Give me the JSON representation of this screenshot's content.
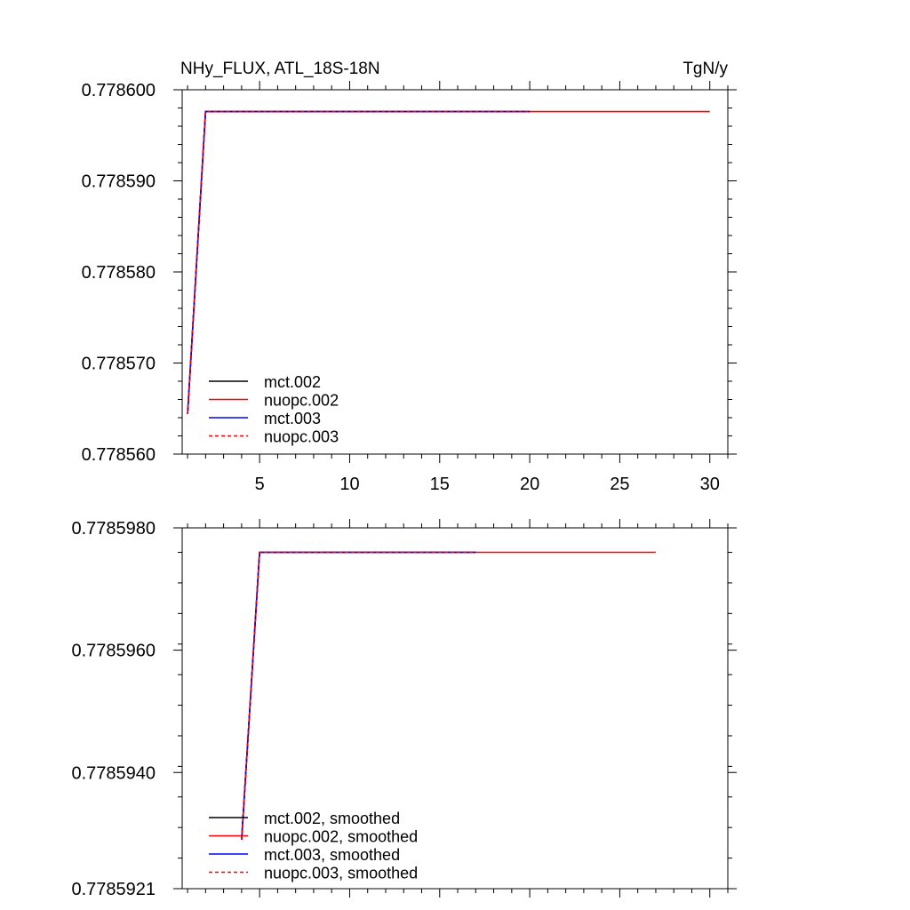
{
  "chart_data": [
    {
      "type": "line",
      "title_left": "NHy_FLUX, ATL_18S-18N",
      "title_right": "TgN/y",
      "xlim": [
        0.7,
        31
      ],
      "ylim": [
        0.77856,
        0.7786
      ],
      "x_ticks": [
        5,
        10,
        15,
        20,
        25,
        30
      ],
      "x_tick_labels": [
        "5",
        "10",
        "15",
        "20",
        "25",
        "30"
      ],
      "x_minor_step": 1,
      "y_ticks": [
        0.77856,
        0.77857,
        0.77858,
        0.77859,
        0.7786
      ],
      "y_tick_labels": [
        "0.778560",
        "0.778570",
        "0.778580",
        "0.778590",
        "0.778600"
      ],
      "y_minor_step": 2e-06,
      "legend_position": "bottom-left",
      "series": [
        {
          "name": "mct.002",
          "color": "#000000",
          "dash": "solid",
          "x": [
            1,
            2,
            20
          ],
          "y": [
            0.7785644,
            0.7785976,
            0.7785976
          ]
        },
        {
          "name": "nuopc.002",
          "color": "#ff0000",
          "dash": "solid",
          "x": [
            1,
            2,
            30
          ],
          "y": [
            0.7785644,
            0.7785976,
            0.7785976
          ]
        },
        {
          "name": "mct.003",
          "color": "#0000ff",
          "dash": "solid",
          "x": [
            1,
            2,
            20
          ],
          "y": [
            0.7785644,
            0.7785976,
            0.7785976
          ]
        },
        {
          "name": "nuopc.003",
          "color": "#ff0000",
          "dash": "dashed",
          "x": [
            1,
            2,
            20
          ],
          "y": [
            0.7785644,
            0.7785976,
            0.7785976
          ]
        }
      ]
    },
    {
      "type": "line",
      "xlim": [
        0.7,
        31
      ],
      "ylim": [
        0.7785921,
        0.778598
      ],
      "x_ticks": [
        5,
        10,
        15,
        20,
        25,
        30
      ],
      "x_tick_labels": [],
      "x_minor_step": 1,
      "y_ticks": [
        0.7785921,
        0.778594,
        0.778596,
        0.778598
      ],
      "y_tick_labels": [
        "0.7785921",
        "0.7785940",
        "0.7785960",
        "0.7785980"
      ],
      "y_minor_step": 5e-07,
      "legend_position": "bottom-left",
      "series": [
        {
          "name": "mct.002, smoothed",
          "color": "#000000",
          "dash": "solid",
          "x": [
            4,
            5,
            17
          ],
          "y": [
            0.7785929,
            0.7785976,
            0.7785976
          ]
        },
        {
          "name": "nuopc.002, smoothed",
          "color": "#ff0000",
          "dash": "solid",
          "x": [
            4,
            5,
            27
          ],
          "y": [
            0.7785929,
            0.7785976,
            0.7785976
          ]
        },
        {
          "name": "mct.003, smoothed",
          "color": "#0000ff",
          "dash": "solid",
          "x": [
            4,
            5,
            17
          ],
          "y": [
            0.7785929,
            0.7785976,
            0.7785976
          ]
        },
        {
          "name": "nuopc.003, smoothed",
          "color": "#ff0000",
          "dash": "dashed",
          "x": [
            4,
            5,
            17
          ],
          "y": [
            0.7785929,
            0.7785976,
            0.7785976
          ]
        }
      ]
    }
  ]
}
